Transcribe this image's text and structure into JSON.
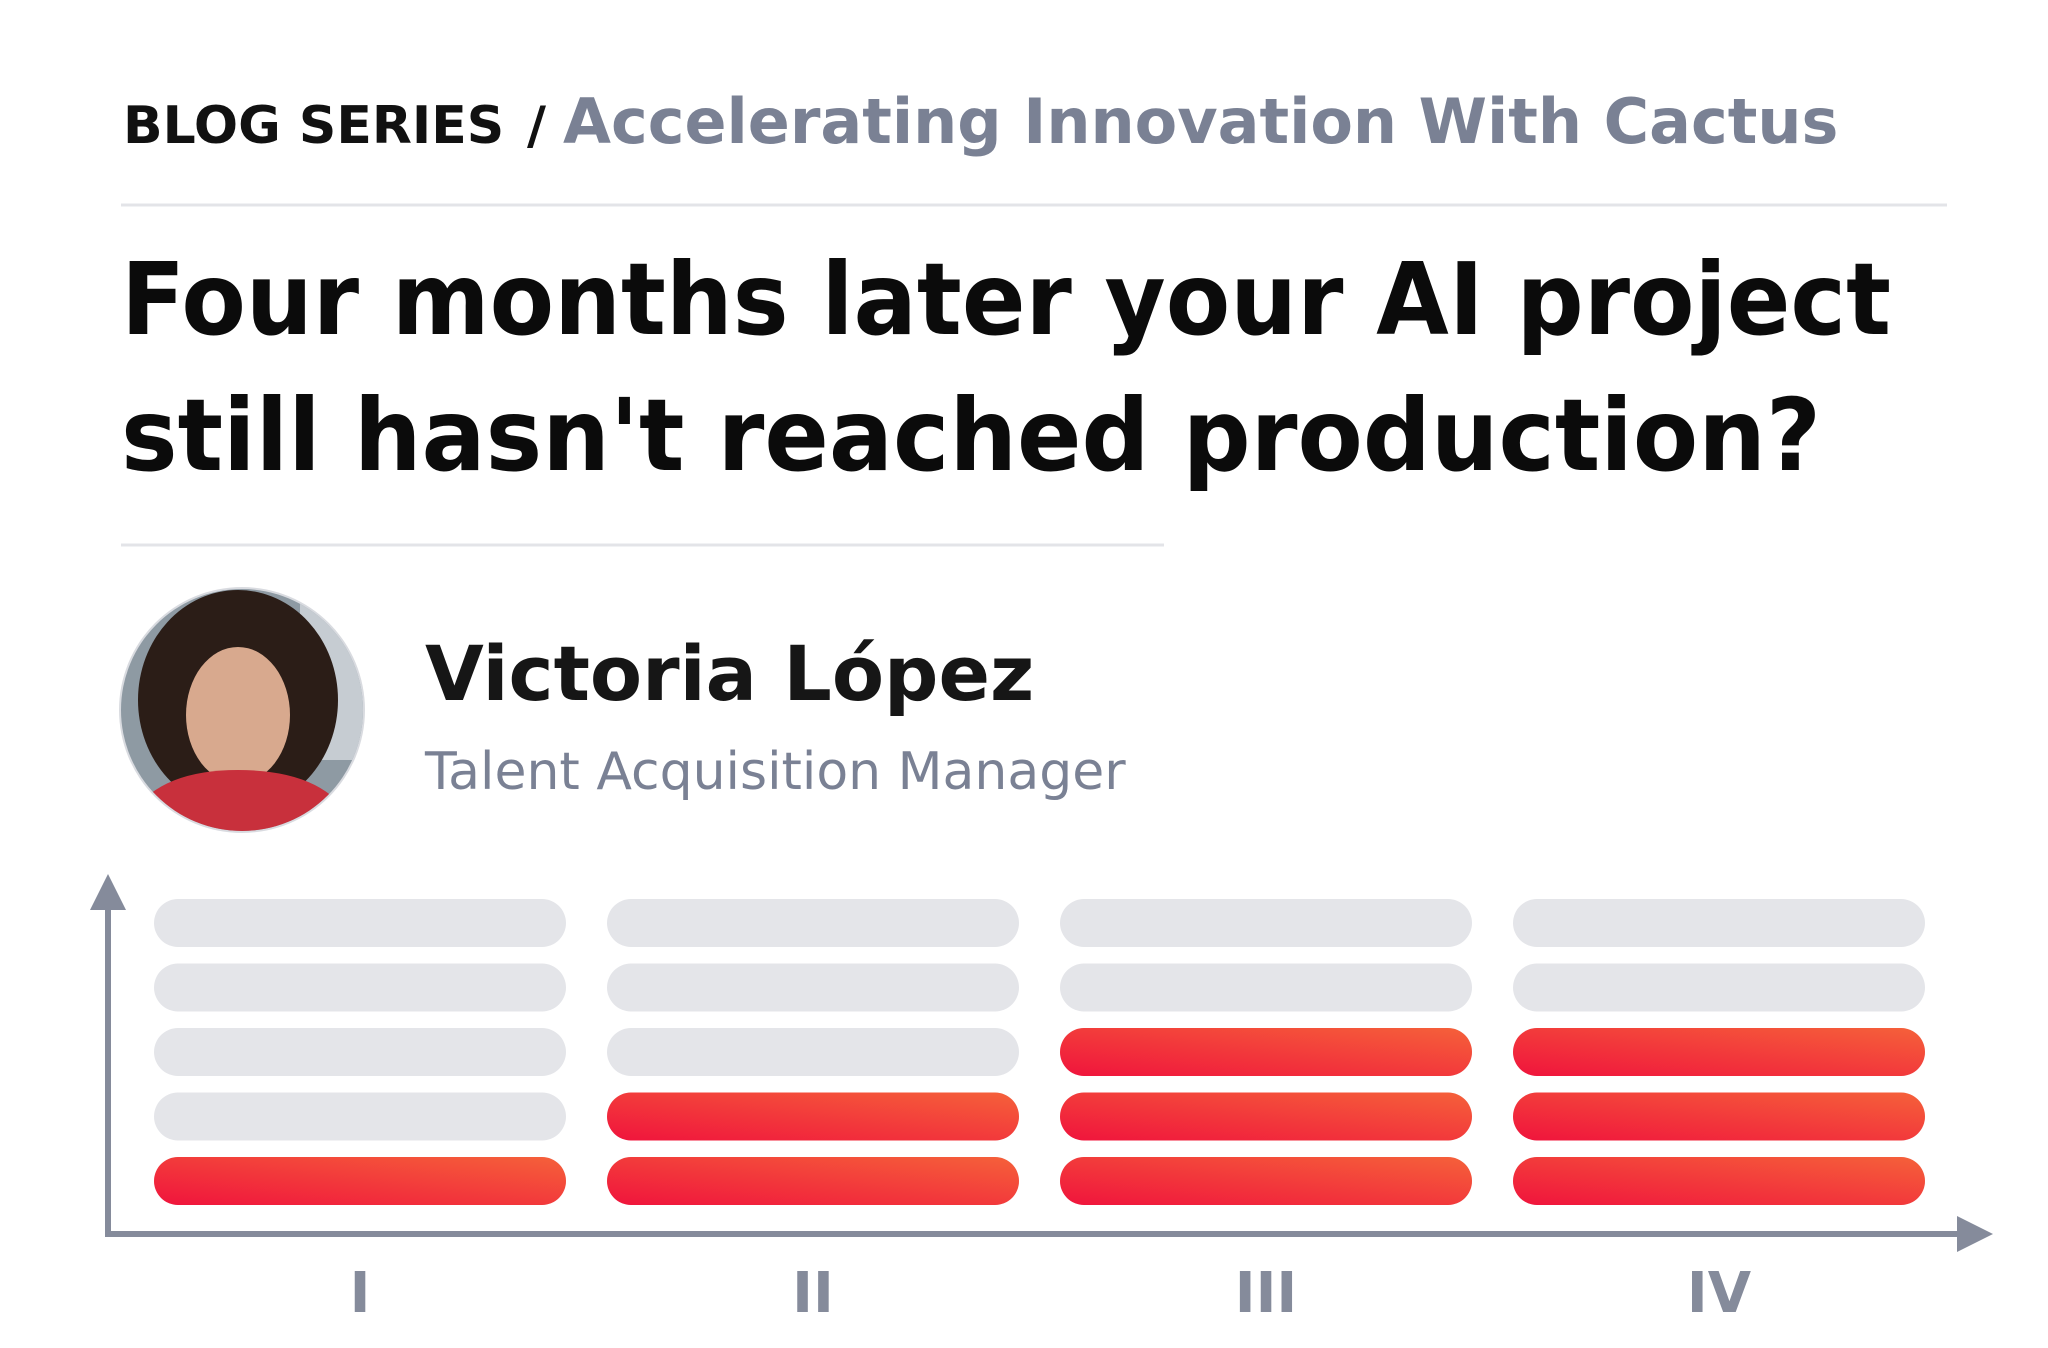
{
  "header": {
    "series_label": "BLOG SERIES",
    "separator": "/",
    "series_name": "Accelerating Innovation With Cactus"
  },
  "title": {
    "lines": [
      "Four months later your AI project",
      "still hasn't reached production?"
    ]
  },
  "author": {
    "name": "Victoria López",
    "role": "Talent Acquisition Manager"
  },
  "chart_data": {
    "type": "bar",
    "categories": [
      "I",
      "II",
      "III",
      "IV"
    ],
    "values": [
      1,
      2,
      3,
      3
    ],
    "ylim": [
      0,
      5
    ],
    "color": "#f0143c"
  }
}
